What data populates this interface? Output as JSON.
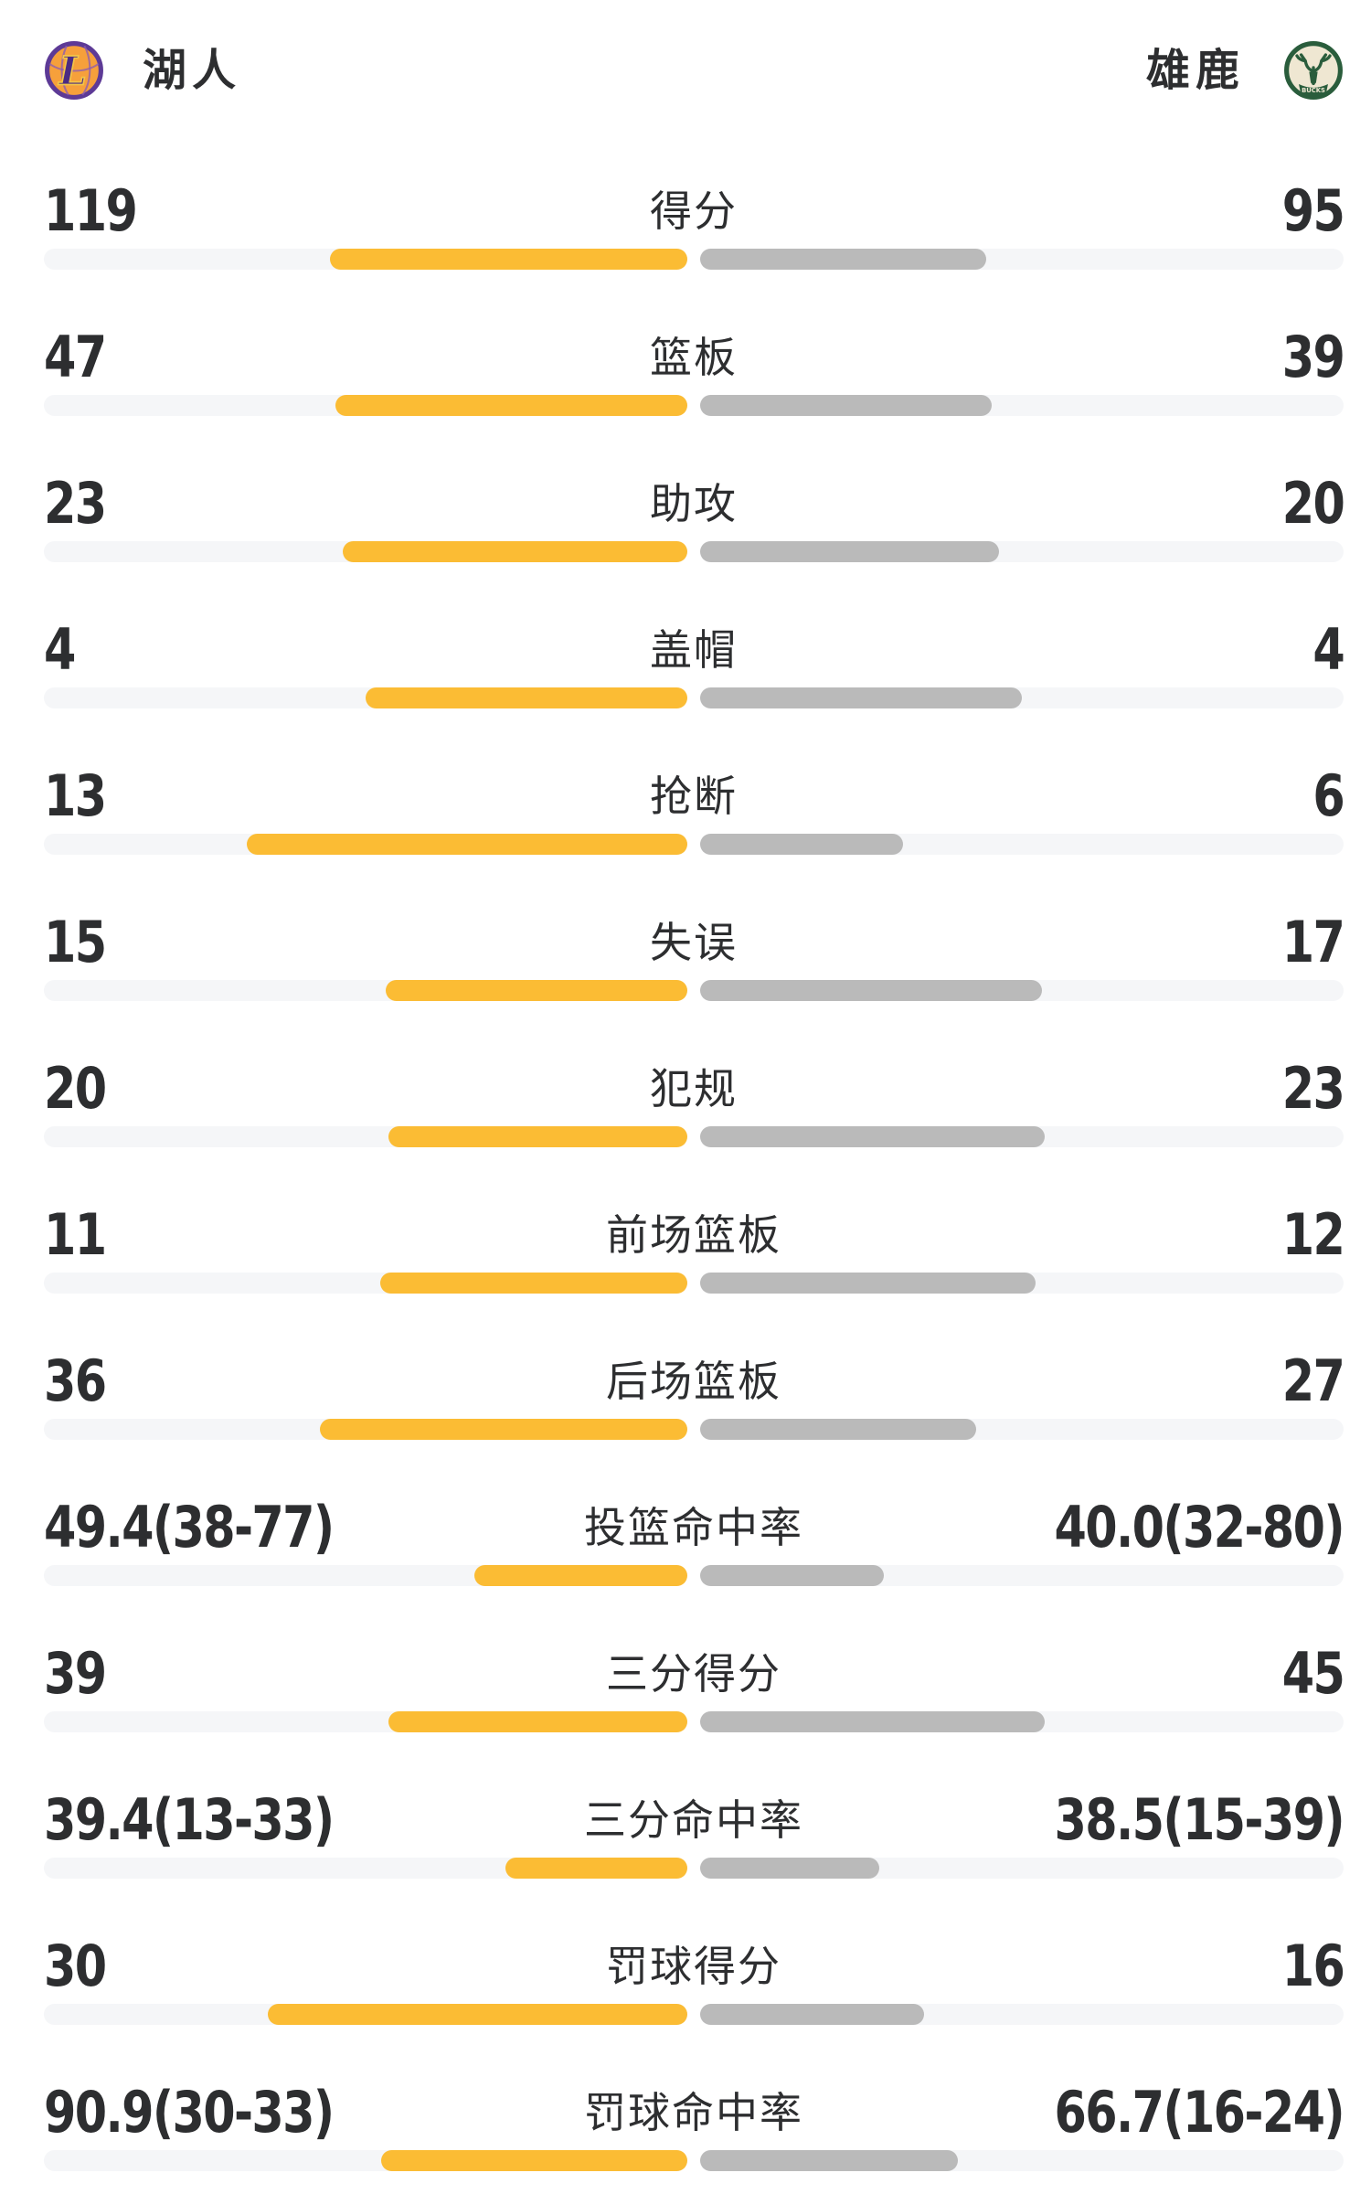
{
  "page": {
    "background": "#ffffff"
  },
  "header": {
    "home_team": {
      "name": "湖人",
      "logo_icon": "lakers-logo",
      "logo_letter": "L"
    },
    "away_team": {
      "name": "雄鹿",
      "logo_icon": "bucks-logo",
      "logo_banner_text": "BUCKS"
    }
  },
  "colors": {
    "home_bar": "#FBBC34",
    "away_bar": "#BABABA",
    "bar_track": "#F5F6F8",
    "text": "#2D2E30",
    "lakers_purple": "#5D3A96",
    "lakers_gold": "#F3C647",
    "lakers_ball_orange": "#F6A03B",
    "bucks_green": "#2A5D3C",
    "bucks_cream": "#EFE7D2"
  },
  "chart_data": {
    "type": "bar",
    "orientation": "horizontal-paired",
    "legend": [
      "湖人",
      "雄鹿"
    ],
    "legend_position": "top",
    "grid": false,
    "bar_scale_hint": "每行两条从中线向外延伸，长度为行内占比；命中率行按 百分比/(百分比+100)",
    "rows": [
      {
        "label": "得分",
        "home_display": "119",
        "away_display": "95",
        "home_value": 119,
        "away_value": 95,
        "home_bar_pct": 55.6,
        "away_bar_pct": 44.4
      },
      {
        "label": "篮板",
        "home_display": "47",
        "away_display": "39",
        "home_value": 47,
        "away_value": 39,
        "home_bar_pct": 54.7,
        "away_bar_pct": 45.3
      },
      {
        "label": "助攻",
        "home_display": "23",
        "away_display": "20",
        "home_value": 23,
        "away_value": 20,
        "home_bar_pct": 53.5,
        "away_bar_pct": 46.5
      },
      {
        "label": "盖帽",
        "home_display": "4",
        "away_display": "4",
        "home_value": 4,
        "away_value": 4,
        "home_bar_pct": 50.0,
        "away_bar_pct": 50.0
      },
      {
        "label": "抢断",
        "home_display": "13",
        "away_display": "6",
        "home_value": 13,
        "away_value": 6,
        "home_bar_pct": 68.4,
        "away_bar_pct": 31.6
      },
      {
        "label": "失误",
        "home_display": "15",
        "away_display": "17",
        "home_value": 15,
        "away_value": 17,
        "home_bar_pct": 46.9,
        "away_bar_pct": 53.1
      },
      {
        "label": "犯规",
        "home_display": "20",
        "away_display": "23",
        "home_value": 20,
        "away_value": 23,
        "home_bar_pct": 46.5,
        "away_bar_pct": 53.5
      },
      {
        "label": "前场篮板",
        "home_display": "11",
        "away_display": "12",
        "home_value": 11,
        "away_value": 12,
        "home_bar_pct": 47.8,
        "away_bar_pct": 52.2
      },
      {
        "label": "后场篮板",
        "home_display": "36",
        "away_display": "27",
        "home_value": 36,
        "away_value": 27,
        "home_bar_pct": 57.1,
        "away_bar_pct": 42.9
      },
      {
        "label": "投篮命中率",
        "home_display": "49.4(38-77)",
        "away_display": "40.0(32-80)",
        "home_value": 49.4,
        "away_value": 40.0,
        "home_bar_pct": 33.1,
        "away_bar_pct": 28.6
      },
      {
        "label": "三分得分",
        "home_display": "39",
        "away_display": "45",
        "home_value": 39,
        "away_value": 45,
        "home_bar_pct": 46.4,
        "away_bar_pct": 53.6
      },
      {
        "label": "三分命中率",
        "home_display": "39.4(13-33)",
        "away_display": "38.5(15-39)",
        "home_value": 39.4,
        "away_value": 38.5,
        "home_bar_pct": 28.3,
        "away_bar_pct": 27.8
      },
      {
        "label": "罚球得分",
        "home_display": "30",
        "away_display": "16",
        "home_value": 30,
        "away_value": 16,
        "home_bar_pct": 65.2,
        "away_bar_pct": 34.8
      },
      {
        "label": "罚球命中率",
        "home_display": "90.9(30-33)",
        "away_display": "66.7(16-24)",
        "home_value": 90.9,
        "away_value": 66.7,
        "home_bar_pct": 47.6,
        "away_bar_pct": 40.0
      }
    ]
  }
}
